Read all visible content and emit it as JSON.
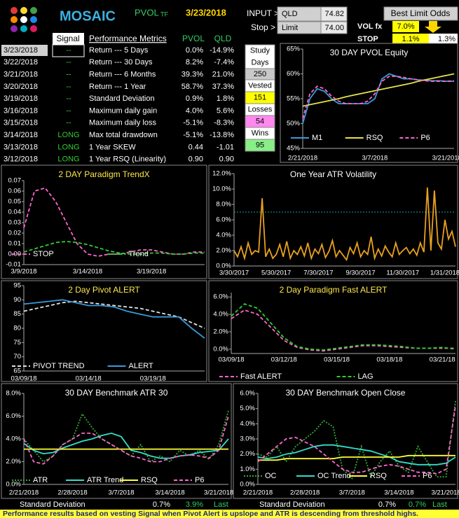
{
  "header": {
    "brand": "MOSAIC",
    "symbol": "PVOL",
    "symbol_suffix": "TF",
    "date": "3/23/2018",
    "input_label": "INPUT >",
    "ticker": "QLD",
    "price": "74.82",
    "stop_label": "Stop >",
    "limit_label": "Limit",
    "limit": "74.00",
    "odds_title": "Best Limit Odds",
    "volfx_label": "VOL fx",
    "volfx": "7.0%",
    "stop2_label": "STOP",
    "stop2": "1.1%",
    "stop3": "1.3%"
  },
  "table": {
    "headers": [
      "Signal",
      "Performance Metrics",
      "PVOL",
      "QLD"
    ],
    "rows": [
      [
        "3/23/2018",
        "--",
        "Return --- 5 Days",
        "0.0%",
        "-14.9%"
      ],
      [
        "3/22/2018",
        "--",
        "Return --- 30 Days",
        "8.2%",
        "-7.4%"
      ],
      [
        "3/21/2018",
        "--",
        "Return --- 6 Months",
        "39.3%",
        "21.0%"
      ],
      [
        "3/20/2018",
        "--",
        "Return --- 1 Year",
        "58.7%",
        "37.3%"
      ],
      [
        "3/19/2018",
        "--",
        "Standard Deviation",
        "0.9%",
        "1.8%"
      ],
      [
        "3/16/2018",
        "--",
        "Maximum daily gain",
        "4.0%",
        "5.6%"
      ],
      [
        "3/15/2018",
        "--",
        "Maximum daily loss",
        "-5.1%",
        "-8.3%"
      ],
      [
        "3/14/2018",
        "LONG",
        "Max total drawdown",
        "-5.1%",
        "-13.8%"
      ],
      [
        "3/13/2018",
        "LONG",
        "1 Year SKEW",
        "0.44",
        "-1.01"
      ],
      [
        "3/12/2018",
        "LONG",
        "1 Year RSQ  (Linearity)",
        "0.90",
        "0.90"
      ]
    ]
  },
  "stats": {
    "study_label_1": "Study",
    "study_label_2": "Days",
    "study": "250",
    "vested_label": "Vested",
    "vested": "151",
    "losses_label": "Losses",
    "losses": "54",
    "wins_label": "Wins",
    "wins": "95"
  },
  "chart_data": [
    {
      "type": "line",
      "title": "30 DAY PVOL  Equity",
      "title_color": "#ffffff",
      "legend": "bottom",
      "categories": [
        "2/21/2018",
        null,
        null,
        null,
        null,
        null,
        null,
        null,
        null,
        null,
        "3/7/2018",
        null,
        null,
        null,
        null,
        null,
        null,
        null,
        null,
        null,
        "3/21/2018",
        null
      ],
      "ylim": [
        45,
        65
      ],
      "yticks": [
        {
          "value": 45,
          "label": "45%"
        },
        {
          "value": 50,
          "label": "50%"
        },
        {
          "value": 55,
          "label": "55%"
        },
        {
          "value": 60,
          "label": "60%"
        },
        {
          "value": 65,
          "label": "65%"
        }
      ],
      "series": [
        {
          "name": "M1",
          "color": "#3a9ad9",
          "dash": "solid",
          "values": [
            50,
            55,
            57,
            56.5,
            55,
            54,
            54,
            54,
            54,
            54,
            55,
            59,
            60,
            59.5,
            59,
            59,
            58.8,
            58.7,
            58.6,
            58.6,
            58.5,
            58.5
          ]
        },
        {
          "name": "RSQ",
          "color": "#e8e04a",
          "dash": "solid",
          "values": [
            53.5,
            53.8,
            54.1,
            54.4,
            54.7,
            55.0,
            55.4,
            55.7,
            56.0,
            56.3,
            56.6,
            56.9,
            57.2,
            57.5,
            57.8,
            58.1,
            58.5,
            58.8,
            59.1,
            59.4,
            59.7,
            60.0
          ]
        },
        {
          "name": "P6",
          "color": "#ff66cc",
          "dash": "dashed",
          "values": [
            51,
            56,
            57.5,
            57,
            55.5,
            54.5,
            54,
            54,
            54,
            54.5,
            56,
            58.5,
            59.5,
            59.5,
            59.3,
            59,
            58.8,
            58.6,
            58.5,
            58.5,
            58.5,
            58.6
          ]
        }
      ]
    },
    {
      "type": "line",
      "title": "2  DAY  Paradigm  TrendX",
      "title_color": "#ffe84a",
      "legend": "bottom",
      "categories": [
        "3/9/2018",
        null,
        null,
        null,
        null,
        null,
        "3/14/2018",
        null,
        null,
        null,
        null,
        null,
        "3/19/2018",
        null,
        null,
        null,
        null,
        null
      ],
      "ylim": [
        -0.01,
        0.07
      ],
      "yticks": [
        -0.01,
        {
          "value": 0,
          "label": "0.00"
        },
        0.01,
        0.02,
        0.03,
        0.04,
        0.05,
        0.06,
        0.07
      ],
      "series": [
        {
          "name": "STOP",
          "color": "#ff66cc",
          "dash": "dashed",
          "values": [
            0.025,
            0.06,
            0.063,
            0.05,
            0.03,
            0.01,
            0,
            -0.002,
            0,
            0,
            0.002,
            0.004,
            0.004,
            0.002,
            0,
            0,
            0.002,
            0.002
          ]
        },
        {
          "name": "Trend",
          "color": "#33cc33",
          "dash": "dashed",
          "values": [
            0.002,
            0.005,
            0.008,
            0.011,
            0.012,
            0.011,
            0.009,
            0.006,
            0.003,
            0.001,
            0,
            0,
            0.001,
            0.001,
            0,
            0,
            0.001,
            0.001
          ]
        }
      ]
    },
    {
      "type": "line",
      "title": "One Year  ATR Volatility",
      "title_color": "#ffffff",
      "categories": [
        "3/30/2017",
        null,
        null,
        null,
        null,
        null,
        null,
        null,
        null,
        null,
        null,
        null,
        "5/30/2017",
        null,
        null,
        null,
        null,
        null,
        null,
        null,
        null,
        null,
        null,
        null,
        "7/30/2017",
        null,
        null,
        null,
        null,
        null,
        null,
        null,
        null,
        null,
        null,
        null,
        "9/30/2017",
        null,
        null,
        null,
        null,
        null,
        null,
        null,
        null,
        null,
        null,
        null,
        "11/30/2017",
        null,
        null,
        null,
        null,
        null,
        null,
        null,
        null,
        null,
        null,
        null,
        "1/31/2018",
        null,
        null,
        null
      ],
      "ylim": [
        0,
        12
      ],
      "yticks": [
        {
          "value": 0,
          "label": "0.0%"
        },
        {
          "value": 2,
          "label": "2.0%"
        },
        {
          "value": 4,
          "label": "4.0%"
        },
        {
          "value": 6,
          "label": "6.0%"
        },
        {
          "value": 8,
          "label": "8.0%"
        },
        {
          "value": 10,
          "label": "10.0%"
        },
        {
          "value": 12,
          "label": "12.0%"
        }
      ],
      "reference_line": 7,
      "reference_color": "#20a0a0",
      "series": [
        {
          "color": "#e8a020",
          "dash": "solid",
          "values": [
            2,
            1.2,
            2.5,
            1,
            3,
            1.5,
            2,
            1.8,
            8.8,
            1.2,
            2.2,
            1,
            1.5,
            2.8,
            1.2,
            3.2,
            1,
            2,
            1.5,
            2.5,
            1.3,
            3,
            1,
            2.2,
            1.6,
            2.8,
            1.1,
            1.9,
            3.3,
            1.2,
            2,
            1.4,
            0.8,
            2.4,
            1.6,
            3,
            1.2,
            2,
            1.5,
            3.8,
            1,
            2.2,
            1.3,
            2.6,
            1.8,
            1.2,
            3,
            1.5,
            2,
            2.4,
            1.6,
            2.2,
            1.4,
            3,
            1.8,
            10.2,
            2,
            9.8,
            3,
            2.2,
            6,
            3.5,
            4.5,
            2.5
          ]
        }
      ]
    },
    {
      "type": "line",
      "title": "2 Day Pivot  ALERT",
      "title_color": "#ffe84a",
      "legend": "bottom",
      "categories": [
        "03/09/18",
        null,
        null,
        null,
        null,
        "03/14/18",
        null,
        null,
        null,
        null,
        "03/19/18",
        null,
        null,
        null,
        null
      ],
      "ylim": [
        65,
        95
      ],
      "yticks": [
        65,
        70,
        75,
        80,
        85,
        90,
        95
      ],
      "series": [
        {
          "name": "PIVOT  TREND",
          "color": "#e0e0e0",
          "dash": "dashed",
          "values": [
            86,
            87,
            88,
            89,
            89.5,
            89,
            88.5,
            88,
            87.5,
            87,
            86,
            85,
            84,
            82,
            80
          ]
        },
        {
          "name": "ALERT",
          "color": "#3a9ad9",
          "dash": "solid",
          "values": [
            88.5,
            89,
            89.5,
            90,
            89,
            88,
            88,
            87.5,
            86,
            85,
            84,
            84,
            84,
            80,
            76.5
          ]
        }
      ]
    },
    {
      "type": "line",
      "title": "2 Day  Paradigm  Fast  ALERT",
      "title_color": "#ffe84a",
      "legend": "bottom",
      "categories": [
        "03/09/18",
        null,
        null,
        null,
        "03/12/18",
        null,
        null,
        null,
        "03/15/18",
        null,
        null,
        null,
        "03/18/18",
        null,
        null,
        null,
        "03/21/18",
        null
      ],
      "ylim": [
        -0.5,
        6.5
      ],
      "yticks": [
        {
          "value": 0,
          "label": "0.0%"
        },
        {
          "value": 2,
          "label": "2.0%"
        },
        {
          "value": 4,
          "label": "4.0%"
        },
        {
          "value": 6,
          "label": "6.0%"
        }
      ],
      "series": [
        {
          "name": "Fast ALERT",
          "color": "#ff66cc",
          "dash": "dashed",
          "values": [
            3.5,
            4.5,
            4,
            2.5,
            1,
            0.2,
            -0.1,
            -0.2,
            0,
            0.2,
            0.4,
            0.4,
            0.3,
            0.2,
            0.1,
            0.1,
            0.1,
            0.1
          ]
        },
        {
          "name": "LAG",
          "color": "#33cc33",
          "dash": "dashed",
          "values": [
            3.8,
            5.2,
            4.7,
            3,
            1.3,
            0.3,
            0,
            -0.1,
            0.1,
            0.3,
            0.5,
            0.5,
            0.4,
            0.3,
            0.1,
            0.1,
            0.2,
            0
          ]
        }
      ]
    },
    {
      "type": "line",
      "title": "30 DAY  Benchmark  ATR 30",
      "title_color": "#ffffff",
      "legend": "bottom",
      "categories": [
        "2/21/2018",
        null,
        null,
        null,
        null,
        "2/28/2018",
        null,
        null,
        null,
        null,
        "3/7/2018",
        null,
        null,
        null,
        null,
        "3/14/2018",
        null,
        null,
        null,
        null,
        "3/21/2018",
        null
      ],
      "ylim": [
        0,
        8
      ],
      "yticks": [
        {
          "value": 0,
          "label": "0.0%"
        },
        {
          "value": 2,
          "label": "2.0%"
        },
        {
          "value": 4,
          "label": "4.0%"
        },
        {
          "value": 6,
          "label": "6.0%"
        },
        {
          "value": 8,
          "label": "8.0%"
        }
      ],
      "series": [
        {
          "name": "ATR",
          "color": "#33aa33",
          "dash": "dotted",
          "values": [
            4,
            3,
            2,
            2.5,
            3.5,
            4,
            6.2,
            5,
            4,
            3.5,
            3,
            2.5,
            3.5,
            2,
            2.5,
            2,
            3,
            2.5,
            3,
            2.2,
            3.5,
            6.5
          ]
        },
        {
          "name": "ATR Trend",
          "color": "#33ddcc",
          "dash": "solid",
          "values": [
            3.6,
            3,
            2.7,
            2.8,
            3.2,
            3.5,
            3.8,
            4,
            4.3,
            4.5,
            4.2,
            3,
            2.8,
            2.5,
            2.3,
            2.3,
            2.5,
            2.6,
            2.8,
            2.9,
            3,
            4
          ]
        },
        {
          "name": "RSQ",
          "color": "#ffff33",
          "dash": "solid",
          "values": [
            3.1,
            3.1,
            3.1,
            3.1,
            3.1,
            3.1,
            3.1,
            3.1,
            3.1,
            3.1,
            3.1,
            3.1,
            3.1,
            3.1,
            3.1,
            3.1,
            3.1,
            3.1,
            3.1,
            3.1,
            3.1,
            3.1
          ]
        },
        {
          "name": "P6",
          "color": "#ff66cc",
          "dash": "dashed",
          "values": [
            4,
            2,
            1.8,
            2.5,
            3.5,
            4,
            4.5,
            4.5,
            4,
            3.5,
            3,
            2.5,
            2.3,
            2,
            2,
            2.3,
            2.5,
            2.6,
            2.5,
            2.3,
            3,
            6
          ]
        }
      ]
    },
    {
      "type": "line",
      "title": "30 DAY  Benchmark  Open Close",
      "title_color": "#ffffff",
      "legend": "bottom",
      "categories": [
        "2/21/2018",
        null,
        null,
        null,
        null,
        "2/28/2018",
        null,
        null,
        null,
        null,
        "3/7/2018",
        null,
        null,
        null,
        null,
        "3/14/2018",
        null,
        null,
        null,
        null,
        "3/21/2018",
        null
      ],
      "ylim": [
        0,
        6
      ],
      "yticks": [
        {
          "value": 0,
          "label": "0.0%"
        },
        {
          "value": 1,
          "label": "1.0%"
        },
        {
          "value": 2,
          "label": "2.0%"
        },
        {
          "value": 3,
          "label": "3.0%"
        },
        {
          "value": 4,
          "label": "4.0%"
        },
        {
          "value": 5,
          "label": "5.0%"
        },
        {
          "value": 6,
          "label": "6.0%"
        }
      ],
      "series": [
        {
          "name": "OC",
          "color": "#33aa33",
          "dash": "dotted",
          "values": [
            2,
            1.8,
            2.5,
            1.5,
            2.5,
            3,
            3.5,
            4.2,
            3.8,
            1,
            0.4,
            2.5,
            0.5,
            1.5,
            2.2,
            1.2,
            0.8,
            2.5,
            1.5,
            0.5,
            0.5,
            5.5
          ]
        },
        {
          "name": "OC Trend",
          "color": "#33ddcc",
          "dash": "solid",
          "values": [
            1.8,
            1.7,
            1.8,
            2,
            2.1,
            2.3,
            2.5,
            2.6,
            2.6,
            2.5,
            2.4,
            2.3,
            2.2,
            2,
            1.8,
            1.5,
            1.4,
            1.3,
            1.3,
            1.3,
            1.4,
            1.8
          ]
        },
        {
          "name": "RSQ",
          "color": "#ffff33",
          "dash": "solid",
          "values": [
            1.6,
            1.6,
            1.6,
            1.7,
            1.7,
            1.7,
            1.7,
            1.7,
            1.7,
            1.8,
            1.8,
            1.8,
            1.8,
            1.8,
            1.8,
            1.8,
            1.9,
            1.9,
            1.9,
            1.9,
            1.9,
            1.9
          ]
        },
        {
          "name": "P6",
          "color": "#ff66cc",
          "dash": "dashed",
          "values": [
            1.5,
            2,
            2.5,
            3,
            3.1,
            2.8,
            2.5,
            2,
            1.5,
            1,
            0.8,
            0.8,
            1,
            1.2,
            1.3,
            1.2,
            1,
            0.8,
            0.8,
            0.7,
            1,
            5.2
          ]
        }
      ]
    }
  ],
  "footer": {
    "left_label": "Standard Deviation",
    "left_v1": "0.7%",
    "left_v2": "3.9%",
    "left_last": "Last",
    "right_label": "Standard Deviation",
    "right_v1": "0.7%",
    "right_v2": "0.7%",
    "right_last": "Last",
    "note": "Performance results based on vesting Signal when Pivot Alert is upslope and ATR is descending  from threshold highs."
  }
}
